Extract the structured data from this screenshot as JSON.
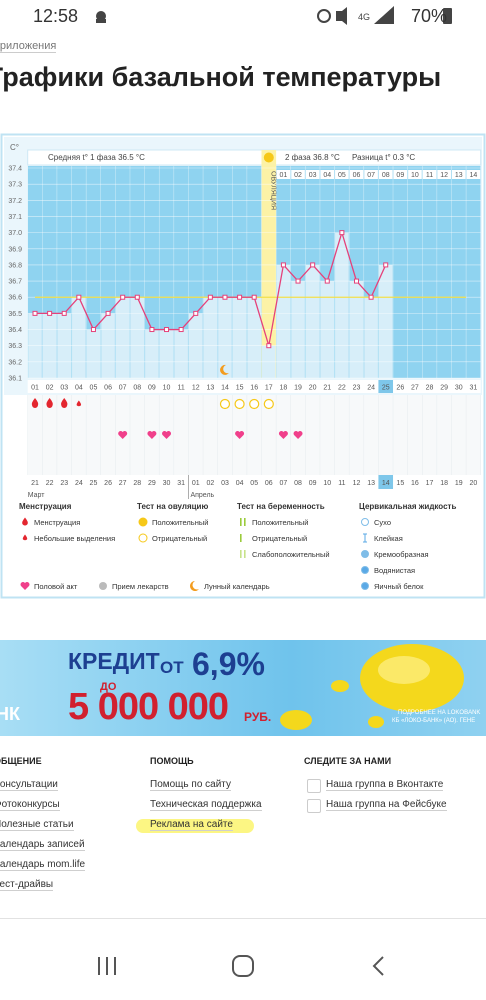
{
  "status_bar": {
    "time": "12:58",
    "battery": "70%"
  },
  "breadcrumb": "Приложения",
  "title": "Графики базальной температуры",
  "chart_data": {
    "type": "line",
    "y_label": "C°",
    "phase1_label": "Средняя t° 1 фаза 36.5 °C",
    "phase2_label": "2 фаза 36.8 °C",
    "difference_label": "Разница t° 0.3 °C",
    "ovulation_label": "ОВУЛЯЦИЯ",
    "ovulation_day": 17,
    "categories": [
      "01",
      "02",
      "03",
      "04",
      "05",
      "06",
      "07",
      "08",
      "09",
      "10",
      "11",
      "12",
      "13",
      "14",
      "15",
      "16",
      "17",
      "18",
      "19",
      "20",
      "21",
      "22",
      "23",
      "24",
      "25",
      "26",
      "27",
      "28",
      "29",
      "30",
      "31"
    ],
    "after_ovulation_days": [
      "01",
      "02",
      "03",
      "04",
      "05",
      "06",
      "07",
      "08",
      "09",
      "10",
      "11",
      "12",
      "13",
      "14"
    ],
    "values": [
      36.5,
      36.5,
      36.5,
      36.6,
      36.4,
      36.5,
      36.6,
      36.6,
      36.4,
      36.4,
      36.4,
      36.5,
      36.6,
      36.6,
      36.6,
      36.6,
      36.3,
      36.8,
      36.7,
      36.8,
      36.7,
      37.0,
      36.7,
      36.6,
      36.8,
      null,
      null,
      null,
      null,
      null,
      null
    ],
    "color": "#e5417a",
    "cover_line": 36.6,
    "ylim": [
      36.1,
      37.4
    ],
    "yticks": [
      36.1,
      36.2,
      36.3,
      36.4,
      36.5,
      36.6,
      36.7,
      36.8,
      36.9,
      {
        "value": 37,
        "label": "37.0"
      },
      37.1,
      37.2,
      37.3,
      37.4
    ],
    "today_day": 25,
    "dates": [
      "21",
      "22",
      "23",
      "24",
      "25",
      "26",
      "27",
      "28",
      "29",
      "30",
      "31",
      "01",
      "02",
      "03",
      "04",
      "05",
      "06",
      "07",
      "08",
      "09",
      "10",
      "11",
      "12",
      "13",
      "14",
      "15",
      "16",
      "17",
      "18",
      "19",
      "20"
    ],
    "months": [
      "Март",
      "Апрель"
    ],
    "menstruation_days": [
      1,
      2,
      3
    ],
    "light_bleeding_days": [
      4
    ],
    "negative_ovulation_test_days": [
      14,
      15,
      16,
      17
    ],
    "intercourse_days": [
      7,
      9,
      10,
      15,
      18,
      19
    ],
    "lunar_days": [
      14
    ]
  },
  "legend": {
    "groups": [
      {
        "title": "Менструация",
        "items": [
          "Менструация",
          "Небольшие выделения"
        ]
      },
      {
        "title": "Тест на овуляцию",
        "items": [
          "Положительный",
          "Отрицательный"
        ]
      },
      {
        "title": "Тест на беременность",
        "items": [
          "Положительный",
          "Отрицательный",
          "Слабоположительный"
        ]
      },
      {
        "title": "Цервикальная жидкость",
        "items": [
          "Сухо",
          "Клейкая",
          "Кремообразная",
          "Водянистая",
          "Яичный белок"
        ]
      }
    ],
    "extra": [
      "Половой акт",
      "Прием лекарств",
      "Лунный календарь"
    ]
  },
  "ad": {
    "credit": "КРЕДИТ",
    "from": "ОТ",
    "rate": "6,9%",
    "to": "ДО",
    "amount": "5 000 000",
    "currency": "РУБ.",
    "bank_short": "НК",
    "more": "ПОДРОБНЕЕ НА LOKOBANK",
    "legal": "КБ «ЛОКО-БАНК» (АО). ГЕНЕ"
  },
  "footer": {
    "columns": [
      {
        "title": "ОБЩЕНИЕ",
        "links": [
          "Консультации",
          "Фотоконкурсы",
          "Полезные статьи",
          "Календарь записей",
          "Календарь mom.life",
          "Тест-драйвы"
        ]
      },
      {
        "title": "ПОМОЩЬ",
        "links": [
          "Помощь по сайту",
          "Техническая поддержка",
          "Реклама на сайте"
        ]
      },
      {
        "title": "СЛЕДИТЕ ЗА НАМИ",
        "links": [
          "Наша группа в Вконтакте",
          "Наша группа на Фейсбуке"
        ]
      }
    ]
  }
}
